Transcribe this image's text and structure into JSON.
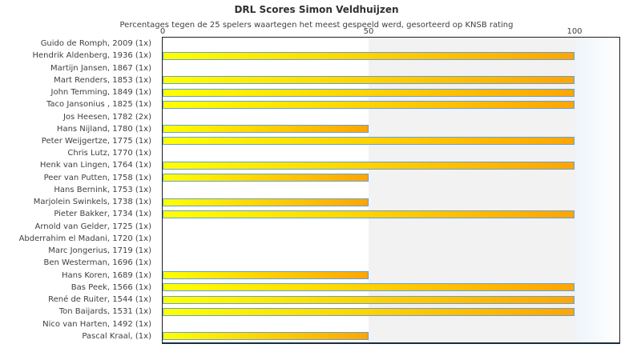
{
  "chart_data": {
    "type": "bar",
    "orientation": "horizontal",
    "title": "DRL Scores Simon Veldhuijzen",
    "subtitle": "Percentages tegen de 25 spelers waartegen het meest gespeeld werd, gesorteerd op KNSB rating",
    "xlabel": "",
    "ylabel": "",
    "xlim": [
      0,
      111
    ],
    "xticks": [
      0,
      50,
      100
    ],
    "grid": false,
    "legend": false,
    "categories": [
      "Guido de Romph, 2009 (1x)",
      "Hendrik Aldenberg, 1936 (1x)",
      "Martijn Jansen, 1867 (1x)",
      "Mart Renders, 1853 (1x)",
      "John Temming, 1849 (1x)",
      "Taco Jansonius , 1825 (1x)",
      "Jos Heesen, 1782 (2x)",
      "Hans Nijland, 1780 (1x)",
      "Peter Weijgertze, 1775 (1x)",
      "Chris Lutz, 1770 (1x)",
      "Henk van Lingen, 1764 (1x)",
      "Peer van Putten, 1758 (1x)",
      "Hans Bernink, 1753 (1x)",
      "Marjolein Swinkels, 1738 (1x)",
      "Pieter Bakker, 1734 (1x)",
      "Arnold van Gelder, 1725 (1x)",
      "Abderrahim el Madani, 1720 (1x)",
      "Marc Jongerius, 1719 (1x)",
      "Ben Westerman, 1696 (1x)",
      "Hans Koren, 1689 (1x)",
      "Bas Peek, 1566 (1x)",
      "René de Ruiter, 1544 (1x)",
      "Ton Baijards, 1531 (1x)",
      "Nico van Harten, 1492 (1x)",
      "Pascal Kraal,  (1x)"
    ],
    "values": [
      0,
      100,
      0,
      100,
      100,
      100,
      0,
      50,
      100,
      0,
      100,
      50,
      0,
      50,
      100,
      0,
      0,
      0,
      0,
      50,
      100,
      100,
      100,
      0,
      50
    ],
    "colors": {
      "bar_gradient_start": "#ffff00",
      "bar_gradient_end": "#ffa500",
      "bar_border": "#64a0d7",
      "band_50_100": "#f2f2f2",
      "band_overflow_start": "#eef4fa",
      "band_overflow_end": "#ffffff",
      "plot_border": "#1f1f1f",
      "text": "#3f3f3f"
    }
  }
}
